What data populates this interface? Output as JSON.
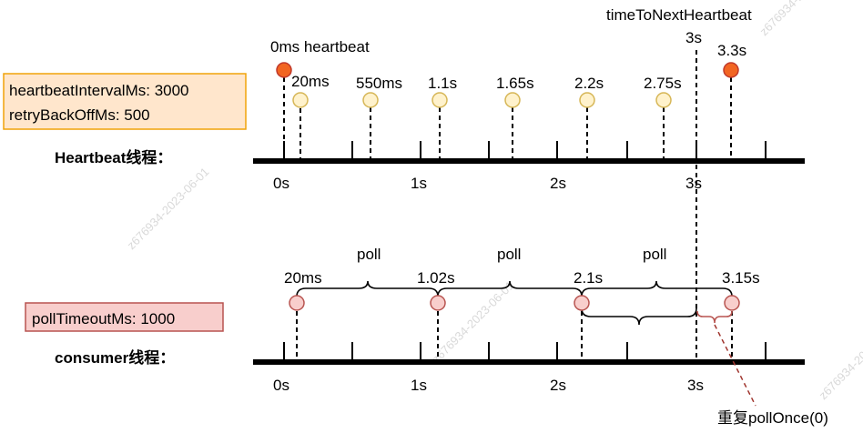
{
  "watermark": "z676934-2023-06-01",
  "heartbeat": {
    "config_lines": [
      "heartbeatIntervalMs: 3000",
      "retryBackOffMs: 500"
    ],
    "thread_label": "Heartbeat线程：",
    "first_event_label": "0ms heartbeat",
    "next_label": "timeToNextHeartbeat",
    "next_time": "3s",
    "events": [
      {
        "label": "20ms",
        "kind": "retry"
      },
      {
        "label": "550ms",
        "kind": "retry"
      },
      {
        "label": "1.1s",
        "kind": "retry"
      },
      {
        "label": "1.65s",
        "kind": "retry"
      },
      {
        "label": "2.2s",
        "kind": "retry"
      },
      {
        "label": "2.75s",
        "kind": "retry"
      },
      {
        "label": "3.3s",
        "kind": "heartbeat"
      }
    ],
    "axis_ticks": [
      "0s",
      "1s",
      "2s",
      "3s"
    ]
  },
  "consumer": {
    "config": "pollTimeoutMs: 1000",
    "thread_label": "consumer线程：",
    "events": [
      "20ms",
      "1.02s",
      "2.1s",
      "3.15s"
    ],
    "poll_label": "poll",
    "repeat_label": "重复pollOnce(0)",
    "axis_ticks": [
      "0s",
      "1s",
      "2s",
      "3s"
    ]
  },
  "colors": {
    "heartbeat_fill": "#f26522",
    "heartbeat_stroke": "#c0392b",
    "retry_fill": "#fff2cc",
    "retry_stroke": "#d6b656",
    "poll_fill": "#f8cecc",
    "poll_stroke": "#b85450",
    "hb_box_fill": "#ffe6cc",
    "hb_box_stroke": "#f0a30a",
    "poll_box_fill": "#f8cecc",
    "poll_box_stroke": "#b85450",
    "repeat_arrow": "#a0352e"
  }
}
